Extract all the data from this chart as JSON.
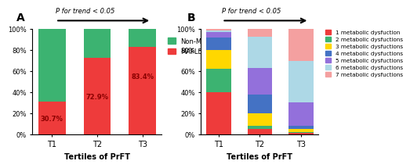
{
  "panel_A": {
    "categories": [
      "T1",
      "T2",
      "T3"
    ],
    "mafld": [
      30.7,
      72.9,
      83.4
    ],
    "non_mafld": [
      69.3,
      27.1,
      16.6
    ],
    "mafld_color": "#EE3B3B",
    "non_mafld_color": "#3CB371",
    "title": "A",
    "trend_text": "P for trend < 0.05",
    "xlabel": "Tertiles of PrFT"
  },
  "panel_B": {
    "categories": [
      "T1",
      "T2",
      "T3"
    ],
    "values": [
      [
        40.0,
        22.0,
        18.0,
        12.0,
        5.0,
        2.0,
        1.0
      ],
      [
        5.0,
        3.0,
        12.0,
        18.0,
        25.0,
        30.0,
        7.0
      ],
      [
        1.0,
        1.0,
        3.0,
        3.0,
        22.0,
        40.0,
        30.0
      ]
    ],
    "colors": [
      "#EE3B3B",
      "#3CB371",
      "#FFD700",
      "#4472C4",
      "#9370DB",
      "#ADD8E6",
      "#F4A0A0"
    ],
    "legend_labels": [
      "1 metabolic dysfuction",
      "2 metabolic dysfuctions",
      "3 metabolic dysfuctions",
      "4 metabolic dysfuctions",
      "5 metabolic dysfuctions",
      "6 metabolic dysfuctions",
      "7 metabolic dysfuctions"
    ],
    "title": "B",
    "trend_text": "P for trend < 0.05",
    "xlabel": "Tertiles of PrFT"
  },
  "background_color": "#FFFFFF"
}
